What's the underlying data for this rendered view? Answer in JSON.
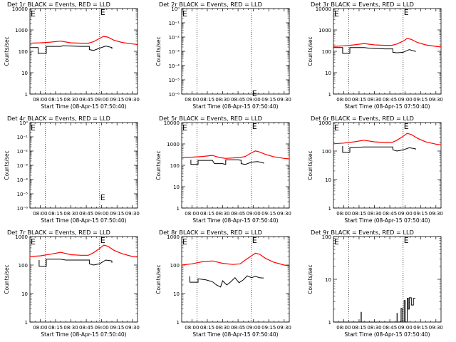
{
  "common": {
    "xlabel": "Start Time (08-Apr-15 07:50:40)",
    "ylabel": "Counts/sec",
    "x_ticks": [
      "08:00",
      "08:15",
      "08:30",
      "08:45",
      "09:00",
      "09:15",
      "09:30"
    ],
    "x_tick_minutes": [
      0,
      15,
      30,
      45,
      60,
      75,
      90
    ],
    "xlim_minutes": [
      -10,
      95
    ],
    "marker_lines_minutes": [
      5,
      58
    ],
    "e_marker_minutes": 58,
    "e_label": "E",
    "colors": {
      "events": "#000000",
      "lld": "#ff0000",
      "axes": "#000000"
    }
  },
  "chart_data": [
    {
      "type": "line",
      "title": "Det 1r BLACK = Events, RED = LLD",
      "scale": "log",
      "ylim": [
        1,
        10000
      ],
      "y_tick_labels": [
        "1",
        "10",
        "100",
        "1000",
        "10000"
      ],
      "y_tick_values": [
        1,
        10,
        100,
        1000,
        10000
      ],
      "e_y": 10000,
      "series": [
        {
          "name": "Events",
          "color": "#000000",
          "x": [
            -10,
            -2,
            -2,
            6,
            6,
            20,
            22,
            40,
            45,
            48,
            48,
            52,
            58,
            64,
            70,
            70
          ],
          "y": [
            150,
            150,
            80,
            80,
            170,
            170,
            180,
            170,
            170,
            170,
            120,
            110,
            140,
            175,
            150,
            130
          ]
        },
        {
          "name": "LLD",
          "color": "#ff0000",
          "x": [
            -10,
            0,
            10,
            20,
            30,
            40,
            47,
            52,
            58,
            62,
            66,
            72,
            80,
            90,
            95
          ],
          "y": [
            240,
            250,
            270,
            300,
            250,
            240,
            240,
            280,
            400,
            500,
            460,
            330,
            260,
            220,
            210
          ]
        }
      ]
    },
    {
      "type": "line",
      "title": "Det 2r BLACK = Events, RED = LLD",
      "scale": "log",
      "ylim": [
        1e-06,
        1
      ],
      "y_tick_labels": [
        "10⁰",
        "10⁻¹",
        "10⁻²",
        "10⁻³",
        "10⁻⁴",
        "10⁻⁵",
        "10⁻⁶"
      ],
      "y_tick_values": [
        1,
        0.1,
        0.01,
        0.001,
        0.0001,
        1e-05,
        1e-06
      ],
      "e_y": 2e-06,
      "series": []
    },
    {
      "type": "line",
      "title": "Det 3r BLACK = Events, RED = LLD",
      "scale": "log",
      "ylim": [
        1,
        10000
      ],
      "y_tick_labels": [
        "1",
        "10",
        "100",
        "1000",
        "10000"
      ],
      "y_tick_values": [
        1,
        10,
        100,
        1000,
        10000
      ],
      "e_y": 10000,
      "series": [
        {
          "name": "Events",
          "color": "#000000",
          "x": [
            -10,
            -1,
            -1,
            6,
            6,
            20,
            25,
            40,
            45,
            48,
            48,
            52,
            58,
            64,
            70,
            70
          ],
          "y": [
            150,
            150,
            80,
            80,
            150,
            150,
            140,
            130,
            130,
            130,
            90,
            85,
            90,
            120,
            100,
            95
          ]
        },
        {
          "name": "LLD",
          "color": "#ff0000",
          "x": [
            -10,
            0,
            10,
            20,
            30,
            40,
            47,
            52,
            58,
            62,
            66,
            72,
            80,
            90,
            95
          ],
          "y": [
            170,
            180,
            200,
            230,
            200,
            190,
            190,
            220,
            300,
            400,
            360,
            260,
            200,
            170,
            160
          ]
        }
      ]
    },
    {
      "type": "line",
      "title": "Det 4r BLACK = Events, RED = LLD",
      "scale": "log",
      "ylim": [
        1e-06,
        1
      ],
      "y_tick_labels": [
        "10⁰",
        "10⁻¹",
        "10⁻²",
        "10⁻³",
        "10⁻⁴",
        "10⁻⁵",
        "10⁻⁶"
      ],
      "y_tick_values": [
        1,
        0.1,
        0.01,
        0.001,
        0.0001,
        1e-05,
        1e-06
      ],
      "e_y": 1e-05,
      "series": []
    },
    {
      "type": "line",
      "title": "Det 5r BLACK = Events, RED = LLD",
      "scale": "log",
      "ylim": [
        1,
        10000
      ],
      "y_tick_labels": [
        "1",
        "10",
        "100",
        "1000",
        "10000"
      ],
      "y_tick_values": [
        1,
        10,
        100,
        1000,
        10000
      ],
      "e_y": 10000,
      "series": [
        {
          "name": "Events",
          "color": "#000000",
          "x": [
            -1,
            -1,
            6,
            6,
            20,
            22,
            30,
            33,
            33,
            40,
            45,
            48,
            48,
            52,
            58,
            64,
            70,
            70
          ],
          "y": [
            180,
            110,
            110,
            170,
            170,
            120,
            120,
            110,
            180,
            180,
            180,
            170,
            120,
            110,
            140,
            150,
            130,
            120
          ]
        },
        {
          "name": "LLD",
          "color": "#ff0000",
          "x": [
            -10,
            0,
            10,
            20,
            27,
            33,
            40,
            47,
            52,
            58,
            62,
            66,
            72,
            80,
            90,
            95
          ],
          "y": [
            230,
            240,
            260,
            290,
            230,
            210,
            220,
            230,
            260,
            380,
            470,
            420,
            320,
            250,
            210,
            200
          ]
        }
      ]
    },
    {
      "type": "line",
      "title": "Det 6r BLACK = Events, RED = LLD",
      "scale": "log",
      "ylim": [
        1,
        1000
      ],
      "y_tick_labels": [
        "1",
        "10",
        "100",
        "1000"
      ],
      "y_tick_values": [
        1,
        10,
        100,
        1000
      ],
      "e_y": 1000,
      "series": [
        {
          "name": "Events",
          "color": "#000000",
          "x": [
            -1,
            -1,
            6,
            6,
            20,
            25,
            40,
            45,
            48,
            48,
            52,
            58,
            64,
            70,
            70
          ],
          "y": [
            150,
            90,
            90,
            130,
            140,
            140,
            140,
            140,
            140,
            110,
            100,
            110,
            130,
            120,
            110
          ]
        },
        {
          "name": "LLD",
          "color": "#ff0000",
          "x": [
            -10,
            0,
            10,
            20,
            30,
            40,
            47,
            52,
            58,
            62,
            66,
            72,
            80,
            90,
            95
          ],
          "y": [
            180,
            190,
            210,
            240,
            210,
            200,
            200,
            240,
            330,
            420,
            380,
            280,
            210,
            175,
            165
          ]
        }
      ]
    },
    {
      "type": "line",
      "title": "Det 7r BLACK = Events, RED = LLD",
      "scale": "log",
      "ylim": [
        1,
        1000
      ],
      "y_tick_labels": [
        "1",
        "10",
        "100",
        "1000"
      ],
      "y_tick_values": [
        1,
        10,
        100,
        1000
      ],
      "e_y": 1000,
      "series": [
        {
          "name": "Events",
          "color": "#000000",
          "x": [
            -1,
            -1,
            6,
            6,
            20,
            25,
            40,
            45,
            48,
            48,
            52,
            58,
            64,
            70,
            70
          ],
          "y": [
            150,
            90,
            90,
            160,
            160,
            150,
            150,
            150,
            150,
            110,
            100,
            110,
            150,
            140,
            120
          ]
        },
        {
          "name": "LLD",
          "color": "#ff0000",
          "x": [
            -10,
            0,
            10,
            20,
            30,
            40,
            47,
            52,
            58,
            62,
            66,
            72,
            80,
            90,
            95
          ],
          "y": [
            200,
            210,
            240,
            280,
            230,
            220,
            220,
            270,
            380,
            500,
            460,
            330,
            250,
            200,
            190
          ]
        }
      ]
    },
    {
      "type": "line",
      "title": "Det 8r BLACK = Events, RED = LLD",
      "scale": "log",
      "ylim": [
        1,
        1000
      ],
      "y_tick_labels": [
        "1",
        "10",
        "100",
        "1000"
      ],
      "y_tick_values": [
        1,
        10,
        100,
        1000
      ],
      "e_y": 1000,
      "series": [
        {
          "name": "Events",
          "color": "#000000",
          "x": [
            -2,
            -2,
            6,
            6,
            14,
            20,
            24,
            28,
            30,
            34,
            38,
            42,
            46,
            50,
            54,
            58,
            62,
            66,
            70
          ],
          "y": [
            40,
            25,
            25,
            33,
            30,
            26,
            20,
            17,
            28,
            20,
            26,
            36,
            24,
            30,
            42,
            36,
            40,
            36,
            35
          ]
        },
        {
          "name": "LLD",
          "color": "#ff0000",
          "x": [
            -10,
            0,
            10,
            20,
            30,
            40,
            47,
            52,
            58,
            62,
            66,
            72,
            80,
            90,
            95
          ],
          "y": [
            100,
            110,
            130,
            140,
            115,
            105,
            110,
            150,
            210,
            260,
            240,
            170,
            125,
            100,
            95
          ]
        }
      ]
    },
    {
      "type": "line",
      "title": "Det 9r BLACK = Events, RED = LLD",
      "scale": "log",
      "ylim": [
        1,
        100
      ],
      "y_tick_labels": [
        "1",
        "10",
        "100"
      ],
      "y_tick_values": [
        1,
        10,
        100
      ],
      "e_y": 100,
      "series": [
        {
          "name": "Events",
          "color": "#000000",
          "x": [
            -10,
            17,
            17,
            17.2,
            17.2,
            52,
            52,
            52.2,
            52.2,
            56,
            56,
            57,
            57,
            59,
            59,
            60,
            60,
            62,
            62,
            63,
            63,
            64,
            64,
            66,
            66,
            68,
            68,
            70
          ],
          "y": [
            1,
            1,
            1.7,
            1.7,
            1,
            1,
            1.6,
            1.6,
            1,
            1,
            2.1,
            2.1,
            1,
            1,
            3.2,
            3.2,
            1,
            1,
            3.6,
            3.6,
            2,
            2,
            3.7,
            3.7,
            2.5,
            2.5,
            3.6,
            3.6
          ]
        },
        {
          "name": "LLD",
          "color": "#ff0000",
          "x": [],
          "y": []
        }
      ]
    }
  ]
}
